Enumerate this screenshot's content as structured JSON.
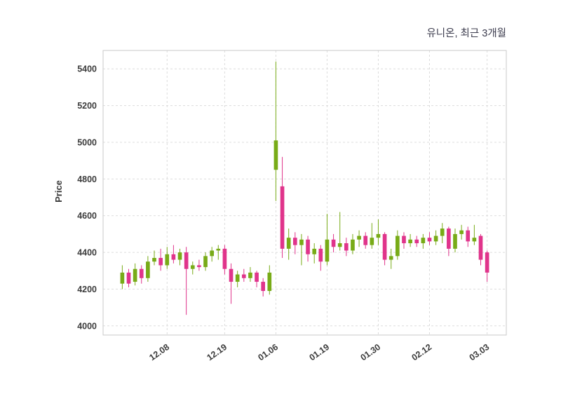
{
  "chart_data": {
    "type": "candlestick",
    "title": "유니온, 최근 3개월",
    "ylabel": "Price",
    "ylim": [
      3950,
      5500
    ],
    "y_ticks": [
      4000,
      4200,
      4400,
      4600,
      4800,
      5000,
      5200,
      5400
    ],
    "x_ticks": [
      {
        "label": "12.08",
        "index": 7
      },
      {
        "label": "12.19",
        "index": 16
      },
      {
        "label": "01.06",
        "index": 24
      },
      {
        "label": "01.19",
        "index": 32
      },
      {
        "label": "01.30",
        "index": 40
      },
      {
        "label": "02.12",
        "index": 48
      },
      {
        "label": "03.03",
        "index": 57
      }
    ],
    "up_color": "#78ab17",
    "down_color": "#e0348b",
    "grid": "dashed",
    "legend": "none",
    "candles": [
      {
        "open": 4230,
        "high": 4330,
        "low": 4200,
        "close": 4290
      },
      {
        "open": 4290,
        "high": 4310,
        "low": 4210,
        "close": 4230
      },
      {
        "open": 4240,
        "high": 4340,
        "low": 4220,
        "close": 4310
      },
      {
        "open": 4310,
        "high": 4330,
        "low": 4230,
        "close": 4260
      },
      {
        "open": 4260,
        "high": 4380,
        "low": 4240,
        "close": 4350
      },
      {
        "open": 4350,
        "high": 4410,
        "low": 4330,
        "close": 4370
      },
      {
        "open": 4370,
        "high": 4420,
        "low": 4300,
        "close": 4330
      },
      {
        "open": 4330,
        "high": 4430,
        "low": 4310,
        "close": 4390
      },
      {
        "open": 4390,
        "high": 4440,
        "low": 4340,
        "close": 4360
      },
      {
        "open": 4360,
        "high": 4420,
        "low": 4330,
        "close": 4400
      },
      {
        "open": 4400,
        "high": 4430,
        "low": 4060,
        "close": 4310
      },
      {
        "open": 4310,
        "high": 4350,
        "low": 4280,
        "close": 4330
      },
      {
        "open": 4330,
        "high": 4360,
        "low": 4300,
        "close": 4320
      },
      {
        "open": 4320,
        "high": 4400,
        "low": 4300,
        "close": 4380
      },
      {
        "open": 4380,
        "high": 4430,
        "low": 4350,
        "close": 4410
      },
      {
        "open": 4410,
        "high": 4440,
        "low": 4360,
        "close": 4420
      },
      {
        "open": 4420,
        "high": 4440,
        "low": 4280,
        "close": 4310
      },
      {
        "open": 4310,
        "high": 4340,
        "low": 4120,
        "close": 4240
      },
      {
        "open": 4240,
        "high": 4300,
        "low": 4210,
        "close": 4280
      },
      {
        "open": 4280,
        "high": 4310,
        "low": 4240,
        "close": 4260
      },
      {
        "open": 4260,
        "high": 4320,
        "low": 4240,
        "close": 4290
      },
      {
        "open": 4290,
        "high": 4300,
        "low": 4210,
        "close": 4240
      },
      {
        "open": 4240,
        "high": 4260,
        "low": 4160,
        "close": 4190
      },
      {
        "open": 4190,
        "high": 4330,
        "low": 4170,
        "close": 4290
      },
      {
        "open": 4850,
        "high": 5440,
        "low": 4680,
        "close": 5010
      },
      {
        "open": 4760,
        "high": 4920,
        "low": 4370,
        "close": 4420
      },
      {
        "open": 4420,
        "high": 4530,
        "low": 4360,
        "close": 4480
      },
      {
        "open": 4480,
        "high": 4510,
        "low": 4390,
        "close": 4440
      },
      {
        "open": 4440,
        "high": 4500,
        "low": 4330,
        "close": 4470
      },
      {
        "open": 4470,
        "high": 4490,
        "low": 4350,
        "close": 4390
      },
      {
        "open": 4390,
        "high": 4450,
        "low": 4340,
        "close": 4420
      },
      {
        "open": 4420,
        "high": 4440,
        "low": 4300,
        "close": 4350
      },
      {
        "open": 4350,
        "high": 4610,
        "low": 4330,
        "close": 4470
      },
      {
        "open": 4470,
        "high": 4500,
        "low": 4400,
        "close": 4430
      },
      {
        "open": 4430,
        "high": 4620,
        "low": 4410,
        "close": 4450
      },
      {
        "open": 4450,
        "high": 4480,
        "low": 4380,
        "close": 4410
      },
      {
        "open": 4410,
        "high": 4500,
        "low": 4390,
        "close": 4470
      },
      {
        "open": 4470,
        "high": 4520,
        "low": 4430,
        "close": 4490
      },
      {
        "open": 4490,
        "high": 4510,
        "low": 4420,
        "close": 4440
      },
      {
        "open": 4440,
        "high": 4560,
        "low": 4420,
        "close": 4480
      },
      {
        "open": 4480,
        "high": 4580,
        "low": 4440,
        "close": 4500
      },
      {
        "open": 4500,
        "high": 4510,
        "low": 4330,
        "close": 4360
      },
      {
        "open": 4360,
        "high": 4420,
        "low": 4310,
        "close": 4380
      },
      {
        "open": 4380,
        "high": 4520,
        "low": 4360,
        "close": 4490
      },
      {
        "open": 4490,
        "high": 4510,
        "low": 4420,
        "close": 4450
      },
      {
        "open": 4450,
        "high": 4500,
        "low": 4430,
        "close": 4470
      },
      {
        "open": 4470,
        "high": 4490,
        "low": 4430,
        "close": 4450
      },
      {
        "open": 4450,
        "high": 4500,
        "low": 4420,
        "close": 4480
      },
      {
        "open": 4480,
        "high": 4510,
        "low": 4440,
        "close": 4460
      },
      {
        "open": 4460,
        "high": 4520,
        "low": 4440,
        "close": 4490
      },
      {
        "open": 4490,
        "high": 4560,
        "low": 4450,
        "close": 4530
      },
      {
        "open": 4530,
        "high": 4540,
        "low": 4380,
        "close": 4420
      },
      {
        "open": 4420,
        "high": 4530,
        "low": 4400,
        "close": 4500
      },
      {
        "open": 4500,
        "high": 4550,
        "low": 4470,
        "close": 4520
      },
      {
        "open": 4520,
        "high": 4540,
        "low": 4430,
        "close": 4460
      },
      {
        "open": 4460,
        "high": 4550,
        "low": 4440,
        "close": 4480
      },
      {
        "open": 4490,
        "high": 4500,
        "low": 4330,
        "close": 4360
      },
      {
        "open": 4400,
        "high": 4410,
        "low": 4240,
        "close": 4290
      }
    ]
  }
}
